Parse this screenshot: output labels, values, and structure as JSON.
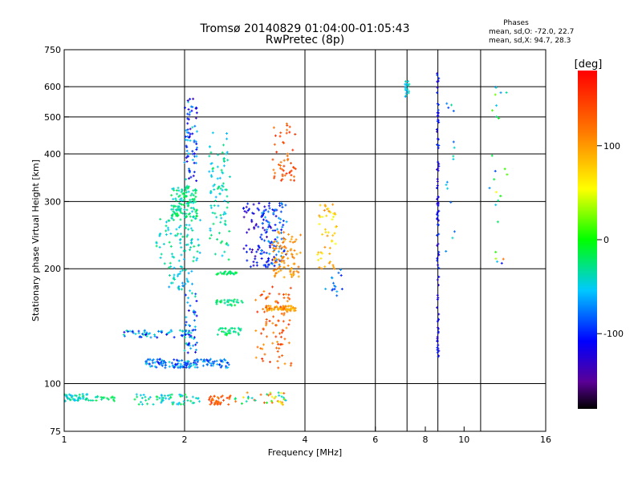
{
  "header": {
    "title_line1": "Tromsø 20140829 01:04:00-01:05:43",
    "title_line2": "RwPretec (8p)",
    "phases_label": "Phases",
    "phases_o": "mean, sd,O: -72.0, 22.7",
    "phases_x": "mean, sd,X:  94.7, 28.3"
  },
  "colorbar": {
    "label": "[deg]",
    "range": [
      -180,
      180
    ],
    "ticks": [
      {
        "value": 100,
        "label": "100"
      },
      {
        "value": 0,
        "label": "0"
      },
      {
        "value": -100,
        "label": "-100"
      }
    ]
  },
  "chart_data": {
    "type": "scatter",
    "xlabel": "Frequency [MHz]",
    "ylabel": "Stationary phase Virtual Height [km]",
    "x_scale": "log",
    "y_scale": "log",
    "xlim": [
      1,
      16
    ],
    "ylim": [
      75,
      750
    ],
    "x_ticks": [
      {
        "v": 1,
        "label": "1"
      },
      {
        "v": 2,
        "label": "2"
      },
      {
        "v": 4,
        "label": "4"
      },
      {
        "v": 6,
        "label": "6"
      },
      {
        "v": 8,
        "label": "8"
      },
      {
        "v": 10,
        "label": "10"
      },
      {
        "v": 16,
        "label": "16"
      }
    ],
    "x_gridlines": [
      2,
      4,
      6,
      7.2,
      8.6,
      11
    ],
    "y_ticks": [
      {
        "v": 75,
        "label": "75"
      },
      {
        "v": 100,
        "label": "100"
      },
      {
        "v": 200,
        "label": "200"
      },
      {
        "v": 300,
        "label": "300"
      },
      {
        "v": 400,
        "label": "400"
      },
      {
        "v": 500,
        "label": "500"
      },
      {
        "v": 600,
        "label": "600"
      },
      {
        "v": 750,
        "label": "750"
      }
    ],
    "grid": true,
    "clusters": [
      {
        "x": [
          1.0,
          1.15
        ],
        "y": [
          90,
          94
        ],
        "phase": [
          -60,
          -20
        ],
        "n": 45
      },
      {
        "x": [
          1.15,
          1.35
        ],
        "y": [
          90,
          93
        ],
        "phase": [
          -40,
          -10
        ],
        "n": 20
      },
      {
        "x": [
          1.5,
          2.2
        ],
        "y": [
          88,
          94
        ],
        "phase": [
          -60,
          -10
        ],
        "n": 60
      },
      {
        "x": [
          2.3,
          2.6
        ],
        "y": [
          88,
          93
        ],
        "phase": [
          110,
          160
        ],
        "n": 35
      },
      {
        "x": [
          2.6,
          3.6
        ],
        "y": [
          88,
          95
        ],
        "phase": [
          -80,
          140
        ],
        "n": 40
      },
      {
        "x": [
          1.6,
          2.6
        ],
        "y": [
          110,
          116
        ],
        "phase": [
          -110,
          -40
        ],
        "n": 140
      },
      {
        "x": [
          1.4,
          2.1
        ],
        "y": [
          132,
          138
        ],
        "phase": [
          -120,
          -30
        ],
        "n": 60
      },
      {
        "x": [
          2.4,
          2.8
        ],
        "y": [
          134,
          140
        ],
        "phase": [
          -40,
          -10
        ],
        "n": 30
      },
      {
        "x": [
          2.0,
          2.15
        ],
        "y": [
          120,
          175
        ],
        "phase": [
          -120,
          -30
        ],
        "n": 45
      },
      {
        "x": [
          2.4,
          2.8
        ],
        "y": [
          160,
          166
        ],
        "phase": [
          -40,
          -10
        ],
        "n": 30
      },
      {
        "x": [
          1.8,
          2.1
        ],
        "y": [
          175,
          200
        ],
        "phase": [
          -70,
          -30
        ],
        "n": 30
      },
      {
        "x": [
          2.4,
          2.7
        ],
        "y": [
          193,
          197
        ],
        "phase": [
          -30,
          -10
        ],
        "n": 25
      },
      {
        "x": [
          1.7,
          2.2
        ],
        "y": [
          200,
          270
        ],
        "phase": [
          -60,
          -20
        ],
        "n": 80
      },
      {
        "x": [
          1.85,
          2.15
        ],
        "y": [
          270,
          330
        ],
        "phase": [
          -50,
          -10
        ],
        "n": 130
      },
      {
        "x": [
          2.0,
          2.15
        ],
        "y": [
          340,
          560
        ],
        "phase": [
          -140,
          -40
        ],
        "n": 70
      },
      {
        "x": [
          2.3,
          2.6
        ],
        "y": [
          210,
          460
        ],
        "phase": [
          -60,
          -20
        ],
        "n": 90
      },
      {
        "x": [
          2.8,
          3.4
        ],
        "y": [
          200,
          300
        ],
        "phase": [
          -140,
          -90
        ],
        "n": 90
      },
      {
        "x": [
          3.1,
          3.6
        ],
        "y": [
          200,
          300
        ],
        "phase": [
          -110,
          -60
        ],
        "n": 70
      },
      {
        "x": [
          3.2,
          3.8
        ],
        "y": [
          155,
          160
        ],
        "phase": [
          80,
          110
        ],
        "n": 60
      },
      {
        "x": [
          3.0,
          3.7
        ],
        "y": [
          110,
          180
        ],
        "phase": [
          100,
          160
        ],
        "n": 90
      },
      {
        "x": [
          3.3,
          3.9
        ],
        "y": [
          190,
          250
        ],
        "phase": [
          90,
          120
        ],
        "n": 90
      },
      {
        "x": [
          3.3,
          3.8
        ],
        "y": [
          340,
          480
        ],
        "phase": [
          110,
          160
        ],
        "n": 50
      },
      {
        "x": [
          4.3,
          4.8
        ],
        "y": [
          200,
          300
        ],
        "phase": [
          50,
          110
        ],
        "n": 50
      },
      {
        "x": [
          4.4,
          5.0
        ],
        "y": [
          170,
          200
        ],
        "phase": [
          -100,
          -50
        ],
        "n": 15
      },
      {
        "x": [
          8.55,
          8.65
        ],
        "y": [
          110,
          660
        ],
        "phase": [
          -130,
          -90
        ],
        "n": 90
      },
      {
        "x": [
          7.1,
          7.3
        ],
        "y": [
          560,
          620
        ],
        "phase": [
          -70,
          -30
        ],
        "n": 18
      },
      {
        "x": [
          9.0,
          9.5
        ],
        "y": [
          200,
          580
        ],
        "phase": [
          -90,
          -30
        ],
        "n": 15
      },
      {
        "x": [
          11.5,
          13
        ],
        "y": [
          200,
          620
        ],
        "phase": [
          -120,
          150
        ],
        "n": 25
      }
    ]
  }
}
